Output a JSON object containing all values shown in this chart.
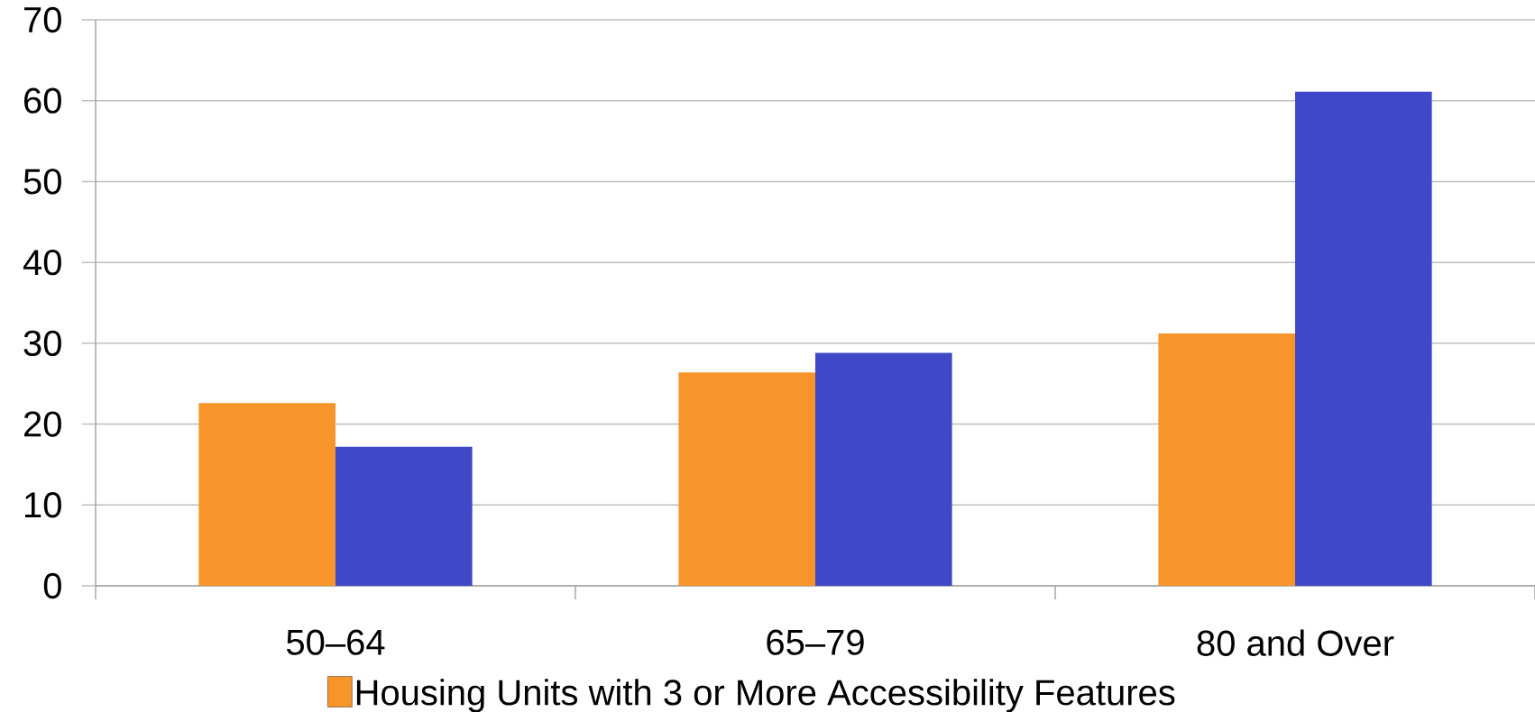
{
  "chart_data": {
    "type": "bar",
    "categories": [
      "50–64",
      "65–79",
      "80 and Over"
    ],
    "series": [
      {
        "name": "Housing Units with 3 or More Accessibility Features",
        "color": "#f7952a",
        "values": [
          22.6,
          26.4,
          31.2
        ]
      },
      {
        "color": "#3f48c6",
        "values": [
          17.2,
          28.8,
          61.1
        ]
      }
    ],
    "ylim": [
      0,
      70
    ],
    "yticks": [
      0,
      10,
      20,
      30,
      40,
      50,
      60,
      70
    ],
    "grid": "y",
    "legend": "bottom"
  }
}
